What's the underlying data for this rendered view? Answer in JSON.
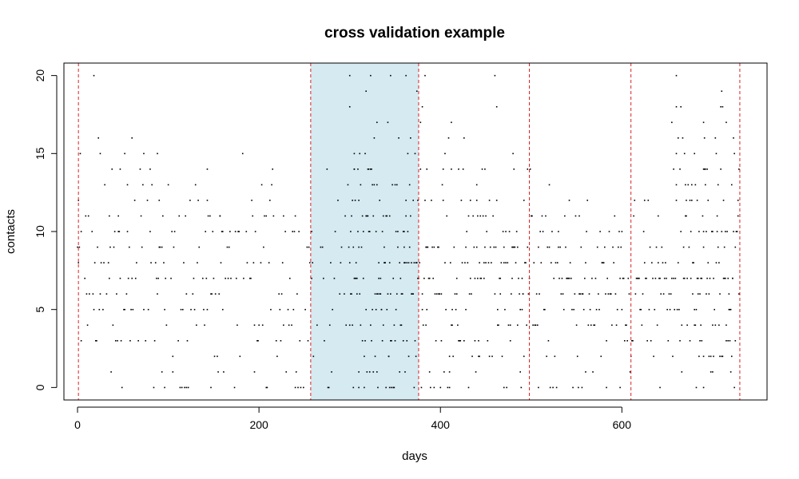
{
  "chart_data": {
    "type": "scatter",
    "title": "cross validation example",
    "xlabel": "days",
    "ylabel": "contacts",
    "xlim": [
      -15,
      760
    ],
    "ylim": [
      -0.8,
      20.8
    ],
    "xticks": [
      0,
      200,
      400,
      600
    ],
    "yticks": [
      0,
      5,
      10,
      15,
      20
    ],
    "xtick_labels": [
      "0",
      "200",
      "400",
      "600"
    ],
    "ytick_labels": [
      "0",
      "5",
      "10",
      "15",
      "20"
    ],
    "grid": false,
    "legend": "none",
    "point_color": "#000000",
    "highlight_band": {
      "x_start": 257,
      "x_end": 376,
      "color": "#d5eaf1"
    },
    "fold_boundaries": {
      "x": [
        1,
        257,
        376,
        498,
        610,
        730
      ],
      "color": "#dd2222",
      "style": "dashed"
    },
    "density_profile": [
      {
        "x_start": 0,
        "x_end": 257,
        "y_center": 6.5,
        "y_spread": 3.4,
        "points_per_day": 0.75
      },
      {
        "x_start": 257,
        "x_end": 300,
        "y_center": 6.5,
        "y_spread": 3.0,
        "points_per_day": 0.6
      },
      {
        "x_start": 300,
        "x_end": 376,
        "y_center": 7.5,
        "y_spread": 4.5,
        "points_per_day": 1.9
      },
      {
        "x_start": 376,
        "x_end": 500,
        "y_center": 7.2,
        "y_spread": 3.6,
        "points_per_day": 1.3
      },
      {
        "x_start": 500,
        "x_end": 660,
        "y_center": 6.0,
        "y_spread": 2.8,
        "points_per_day": 1.0
      },
      {
        "x_start": 660,
        "x_end": 730,
        "y_center": 8.0,
        "y_spread": 4.6,
        "points_per_day": 1.8
      }
    ],
    "sample_points": [
      [
        18,
        20
      ],
      [
        300,
        20
      ],
      [
        323,
        20
      ],
      [
        345,
        20
      ],
      [
        362,
        20
      ],
      [
        383,
        20
      ],
      [
        460,
        20
      ],
      [
        660,
        20
      ],
      [
        318,
        19
      ],
      [
        710,
        19
      ],
      [
        300,
        18
      ],
      [
        380,
        18
      ],
      [
        462,
        18
      ],
      [
        660,
        18
      ],
      [
        709,
        18
      ],
      [
        23,
        16
      ],
      [
        60,
        16
      ],
      [
        330,
        17
      ],
      [
        378,
        17
      ],
      [
        412,
        17
      ],
      [
        655,
        17
      ],
      [
        690,
        17
      ],
      [
        715,
        17
      ],
      [
        3,
        15
      ],
      [
        25,
        15
      ],
      [
        52,
        15
      ],
      [
        73,
        15
      ],
      [
        88,
        15
      ],
      [
        182,
        15
      ],
      [
        305,
        15
      ],
      [
        405,
        15
      ],
      [
        480,
        15
      ],
      [
        660,
        15
      ],
      [
        680,
        15
      ],
      [
        47,
        14
      ],
      [
        80,
        14
      ],
      [
        143,
        14
      ],
      [
        275,
        14
      ],
      [
        305,
        14
      ],
      [
        385,
        14
      ],
      [
        420,
        14
      ],
      [
        496,
        14
      ],
      [
        657,
        14
      ],
      [
        690,
        14
      ],
      [
        30,
        13
      ],
      [
        55,
        13
      ],
      [
        72,
        13
      ],
      [
        82,
        13
      ],
      [
        312,
        13
      ],
      [
        440,
        13
      ],
      [
        520,
        13
      ],
      [
        670,
        13
      ],
      [
        1,
        12
      ],
      [
        63,
        12
      ],
      [
        90,
        12
      ],
      [
        143,
        12
      ],
      [
        310,
        12
      ],
      [
        440,
        12
      ],
      [
        492,
        12
      ],
      [
        542,
        12
      ],
      [
        625,
        12
      ],
      [
        12,
        11
      ],
      [
        35,
        11
      ],
      [
        70,
        11
      ],
      [
        146,
        11
      ],
      [
        157,
        11
      ],
      [
        227,
        11
      ],
      [
        320,
        11
      ],
      [
        450,
        11
      ],
      [
        553,
        11
      ],
      [
        640,
        11
      ],
      [
        4,
        10
      ],
      [
        45,
        10
      ],
      [
        160,
        10
      ],
      [
        186,
        10
      ],
      [
        258,
        10
      ],
      [
        360,
        10
      ],
      [
        530,
        10
      ],
      [
        600,
        10
      ],
      [
        690,
        10
      ],
      [
        93,
        1
      ],
      [
        105,
        1
      ],
      [
        195,
        1
      ],
      [
        330,
        1
      ],
      [
        410,
        1
      ],
      [
        560,
        1
      ],
      [
        700,
        1
      ],
      [
        720,
        1
      ],
      [
        96,
        0
      ],
      [
        120,
        0
      ],
      [
        147,
        0
      ],
      [
        208,
        0
      ],
      [
        240,
        0
      ],
      [
        276,
        0
      ],
      [
        310,
        0
      ],
      [
        344,
        0
      ],
      [
        410,
        0
      ],
      [
        470,
        0
      ],
      [
        508,
        0
      ],
      [
        556,
        0
      ],
      [
        583,
        0
      ],
      [
        598,
        0
      ],
      [
        642,
        0
      ],
      [
        690,
        0
      ]
    ]
  }
}
